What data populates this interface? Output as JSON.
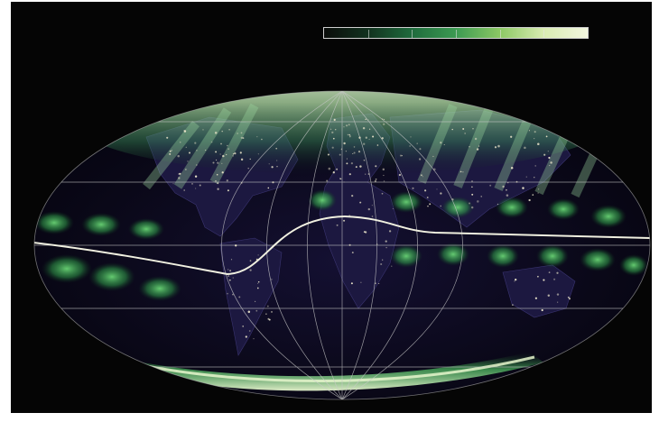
{
  "map": {
    "projection": "mollweide",
    "colormap": {
      "stops": [
        "#0a0c0a",
        "#12321f",
        "#1f6b3d",
        "#3c9a52",
        "#8cc864",
        "#d9ecb2",
        "#f2f6df"
      ],
      "tick_count": 6
    },
    "colors": {
      "ocean": "#0a0818",
      "land_night": "#1a1638",
      "aurora_green": "#5fd36a",
      "aurora_pale": "#e4f7cf",
      "graticule": "#c9c9c9",
      "terminator_line": "#f0f0e0"
    },
    "graticule": {
      "parallels_deg": [
        -60,
        -30,
        0,
        30,
        60
      ],
      "meridians_deg": [
        -120,
        -60,
        0,
        60,
        120
      ]
    },
    "features": [
      "north-auroral-oval",
      "south-auroral-oval",
      "equatorial-airglow-bands",
      "city-lights",
      "magnetic-equator-line"
    ]
  }
}
